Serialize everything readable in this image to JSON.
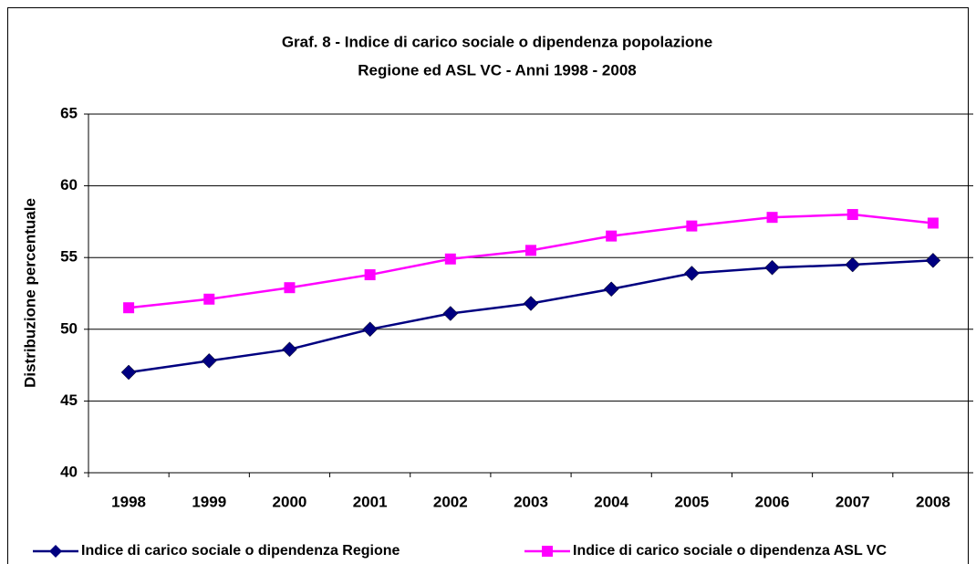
{
  "chart_data": {
    "type": "line",
    "title": "Graf. 8 - Indice di carico sociale o dipendenza popolazione",
    "subtitle": "Regione ed ASL VC  -  Anni 1998 - 2008",
    "y_label": "Distribuzione percentuale",
    "categories": [
      "1998",
      "1999",
      "2000",
      "2001",
      "2002",
      "2003",
      "2004",
      "2005",
      "2006",
      "2007",
      "2008"
    ],
    "series": [
      {
        "name": "Indice di carico sociale o dipendenza Regione",
        "color": "#000080",
        "marker": "diamond",
        "values": [
          47.0,
          47.8,
          48.6,
          50.0,
          51.1,
          51.8,
          52.8,
          53.9,
          54.3,
          54.5,
          54.8
        ]
      },
      {
        "name": "Indice di carico sociale o dipendenza ASL VC",
        "color": "#ff00ff",
        "marker": "square",
        "values": [
          51.5,
          52.1,
          52.9,
          53.8,
          54.9,
          55.5,
          56.5,
          57.2,
          57.8,
          58.0,
          57.4
        ]
      }
    ],
    "ylim": [
      40,
      65
    ],
    "yticks": [
      40,
      45,
      50,
      55,
      60,
      65
    ],
    "grid": true,
    "legend": "bottom"
  }
}
